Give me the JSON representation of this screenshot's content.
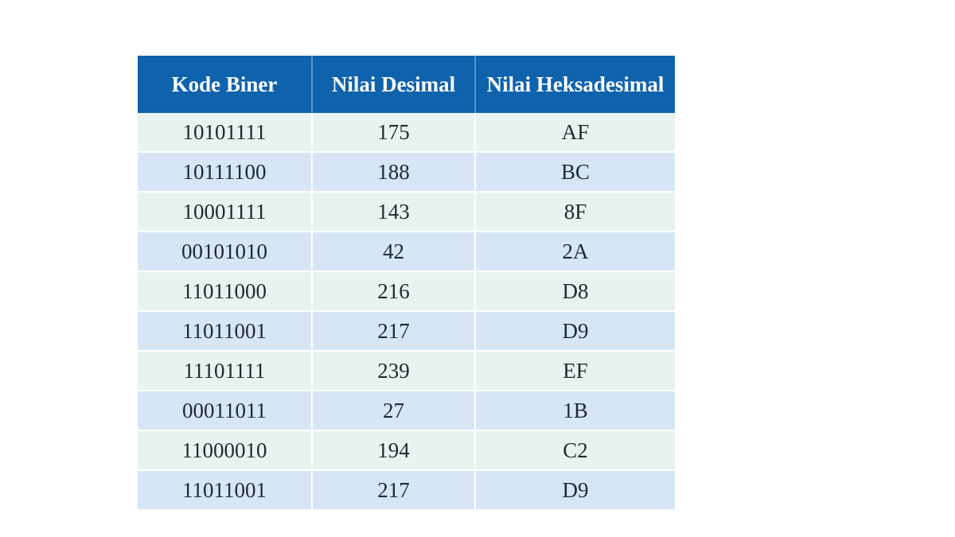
{
  "table": {
    "headers": [
      "Kode Biner",
      "Nilai Desimal",
      "Nilai Heksadesimal"
    ],
    "rows": [
      [
        "10101111",
        "175",
        "AF"
      ],
      [
        "10111100",
        "188",
        "BC"
      ],
      [
        "10001111",
        "143",
        "8F"
      ],
      [
        "00101010",
        "42",
        "2A"
      ],
      [
        "11011000",
        "216",
        "D8"
      ],
      [
        "11011001",
        "217",
        "D9"
      ],
      [
        "11101111",
        "239",
        "EF"
      ],
      [
        "00011011",
        "27",
        "1B"
      ],
      [
        "11000010",
        "194",
        "C2"
      ],
      [
        "11011001",
        "217",
        "D9"
      ]
    ]
  },
  "colors": {
    "header_bg": "#0f62ac",
    "row_odd_bg": "#e8f3ef",
    "row_even_bg": "#d7e6f6"
  }
}
